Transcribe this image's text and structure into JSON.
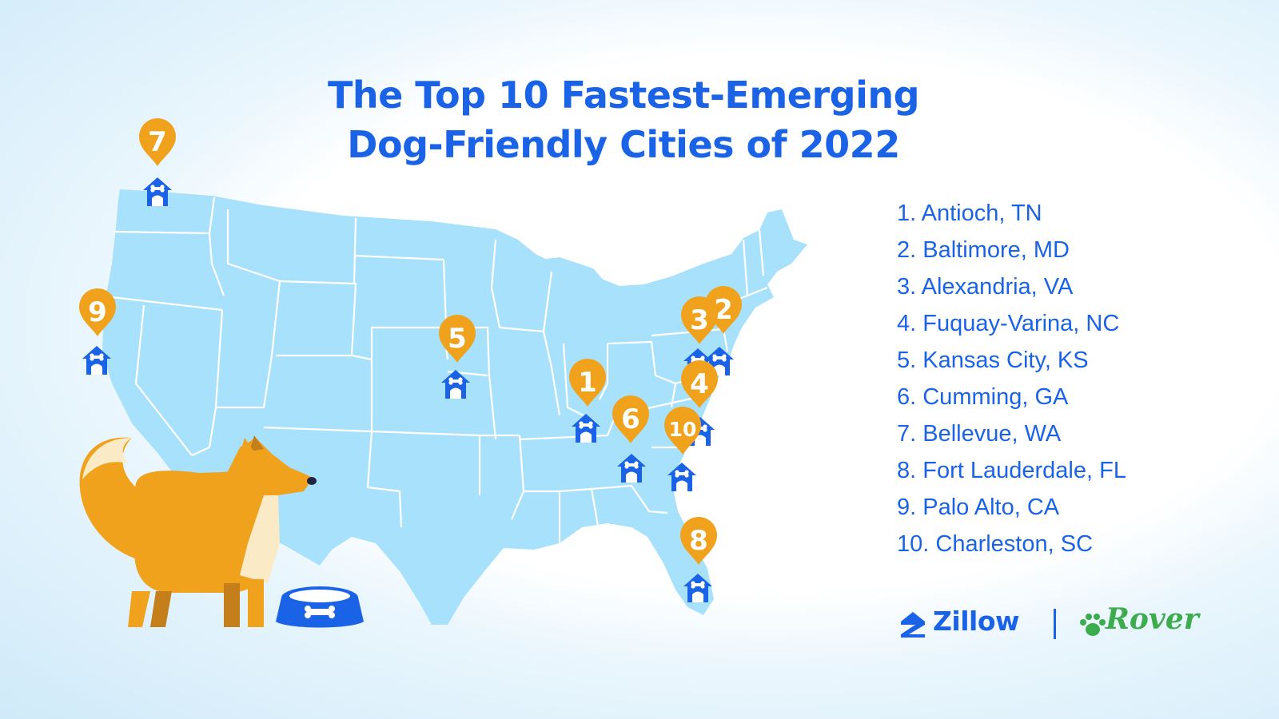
{
  "title": {
    "line1": "The Top 10 Fastest-Emerging",
    "line2": "Dog-Friendly Cities of 2022"
  },
  "rankings": [
    {
      "rank": "1",
      "label": "1. Antioch, TN"
    },
    {
      "rank": "2",
      "label": "2. Baltimore, MD"
    },
    {
      "rank": "3",
      "label": "3. Alexandria, VA"
    },
    {
      "rank": "4",
      "label": "4. Fuquay-Varina, NC"
    },
    {
      "rank": "5",
      "label": "5. Kansas City, KS"
    },
    {
      "rank": "6",
      "label": "6. Cumming, GA"
    },
    {
      "rank": "7",
      "label": "7. Bellevue, WA"
    },
    {
      "rank": "8",
      "label": "8. Fort Lauderdale, FL"
    },
    {
      "rank": "9",
      "label": "9. Palo Alto, CA"
    },
    {
      "rank": "10",
      "label": "10. Charleston, SC"
    }
  ],
  "logos": {
    "zillow": "Zillow",
    "rover": "Rover"
  },
  "colors": {
    "title": "#1b63e6",
    "map_fill": "#a8e1fb",
    "state_lines": "#ffffff",
    "pin": "#f0a21d",
    "doghouse": "#1b63e6",
    "rover_brand": "#3cac4c",
    "fox": "#f0a21d",
    "fox_light": "#faebc6"
  },
  "icons": {
    "pin": "map-pin-icon",
    "doghouse": "doghouse-icon",
    "bowl": "dog-bowl-icon"
  }
}
